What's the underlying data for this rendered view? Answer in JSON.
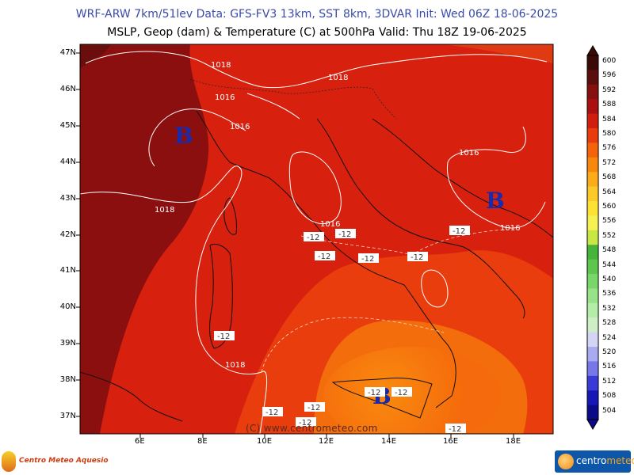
{
  "header": {
    "title_line1": "WRF-ARW 7km/51lev   Data: GFS-FV3 13km, SST 8km, 3DVAR   Init: Wed 06Z 18-06-2025",
    "title_line2": "MSLP, Geop (dam) & Temperature (C) at 500hPa   Valid: Thu 18Z 19-06-2025"
  },
  "map": {
    "latitude_labels": [
      "47N",
      "46N",
      "45N",
      "44N",
      "43N",
      "42N",
      "41N",
      "40N",
      "39N",
      "38N",
      "37N"
    ],
    "longitude_labels": [
      "6E",
      "8E",
      "10E",
      "12E",
      "14E",
      "16E",
      "18E"
    ],
    "isobar_labels": [
      "1018",
      "1018",
      "1016",
      "1016",
      "1016",
      "1018",
      "1016",
      "1016",
      "1018"
    ],
    "low_center_symbol": "B",
    "temperature_labels": [
      "-12",
      "-12",
      "-12",
      "-12",
      "-12",
      "-12",
      "-12",
      "-12",
      "-12",
      "-12",
      "-12",
      "-12",
      "-12"
    ],
    "copyright": "(C) www.centrometeo.com"
  },
  "colorbar": {
    "levels": [
      "600",
      "596",
      "592",
      "588",
      "584",
      "580",
      "576",
      "572",
      "568",
      "564",
      "560",
      "556",
      "552",
      "548",
      "544",
      "540",
      "536",
      "532",
      "528",
      "524",
      "520",
      "516",
      "512",
      "508",
      "504"
    ],
    "colors": [
      "#3a0b06",
      "#5c0d0d",
      "#870f0f",
      "#aa1010",
      "#d01d10",
      "#e83c0e",
      "#f3640c",
      "#f8880d",
      "#fbac1a",
      "#fcc92a",
      "#fde234",
      "#f6f052",
      "#c9e744",
      "#46b33a",
      "#5cc64d",
      "#78d768",
      "#98e38a",
      "#b5eca8",
      "#cfeec6",
      "#d4d4f4",
      "#aaaaf0",
      "#7777ea",
      "#3a3ad8",
      "#1717b8",
      "#0b0b8a"
    ]
  },
  "footer": {
    "logo_left_text": "Centro Meteo Aquesio",
    "logo_right_text_a": "centro",
    "logo_right_text_b": "meteo"
  }
}
